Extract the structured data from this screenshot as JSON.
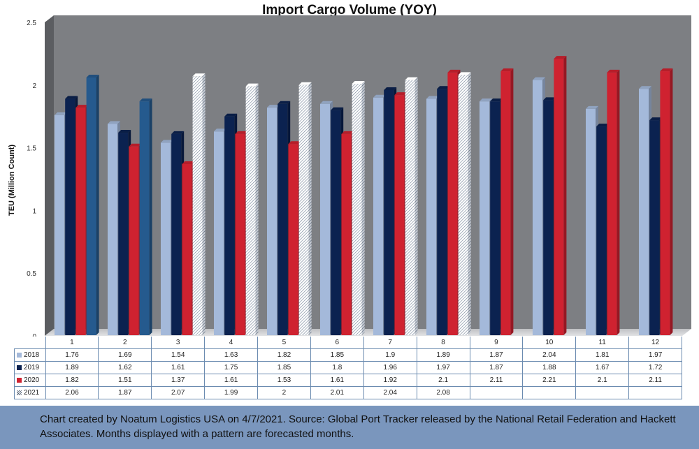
{
  "chart_data": {
    "type": "bar",
    "title": "Import Cargo Volume (YOY)",
    "xlabel": "",
    "ylabel": "TEU (Million Count)",
    "ylim": [
      0,
      2.5
    ],
    "yticks": [
      "0",
      "0.5",
      "1",
      "1.5",
      "2",
      "2.5"
    ],
    "categories": [
      "1",
      "2",
      "3",
      "4",
      "5",
      "6",
      "7",
      "8",
      "9",
      "10",
      "11",
      "12"
    ],
    "grid": false,
    "legend": "data-table",
    "series": [
      {
        "name": "2018",
        "color": "#a4b9da",
        "values": [
          1.76,
          1.69,
          1.54,
          1.63,
          1.82,
          1.85,
          1.9,
          1.89,
          1.87,
          2.04,
          1.81,
          1.97
        ],
        "labels": [
          "1.76",
          "1.69",
          "1.54",
          "1.63",
          "1.82",
          "1.85",
          "1.9",
          "1.89",
          "1.87",
          "2.04",
          "1.81",
          "1.97"
        ]
      },
      {
        "name": "2019",
        "color": "#0b2250",
        "values": [
          1.89,
          1.62,
          1.61,
          1.75,
          1.85,
          1.8,
          1.96,
          1.97,
          1.87,
          1.88,
          1.67,
          1.72
        ],
        "labels": [
          "1.89",
          "1.62",
          "1.61",
          "1.75",
          "1.85",
          "1.8",
          "1.96",
          "1.97",
          "1.87",
          "1.88",
          "1.67",
          "1.72"
        ]
      },
      {
        "name": "2020",
        "color": "#cf2230",
        "values": [
          1.82,
          1.51,
          1.37,
          1.61,
          1.53,
          1.61,
          1.92,
          2.1,
          2.11,
          2.21,
          2.1,
          2.11
        ],
        "labels": [
          "1.82",
          "1.51",
          "1.37",
          "1.61",
          "1.53",
          "1.61",
          "1.92",
          "2.1",
          "2.11",
          "2.21",
          "2.1",
          "2.11"
        ]
      },
      {
        "name": "2021",
        "color": "#255a8e",
        "values": [
          2.06,
          1.87,
          2.07,
          1.99,
          2,
          2.01,
          2.04,
          2.08,
          null,
          null,
          null,
          null
        ],
        "labels": [
          "2.06",
          "1.87",
          "2.07",
          "1.99",
          "2",
          "2.01",
          "2.04",
          "2.08",
          "",
          "",
          "",
          ""
        ],
        "forecast": [
          false,
          false,
          true,
          true,
          true,
          true,
          true,
          true,
          false,
          false,
          false,
          false
        ]
      }
    ]
  },
  "footer": {
    "note": "Chart created by Noatum Logistics USA on 4/7/2021. Source: Global Port Tracker released by the National Retail Federation and Hackett Associates. Months displayed with a pattern are forecasted months."
  },
  "colors": {
    "plot_back": "#7d7f83",
    "plot_side": "#5b5d61",
    "plot_floor": "#d0d1d3",
    "footer_bg": "#7a96bd",
    "table_border": "#6b8bb0"
  }
}
